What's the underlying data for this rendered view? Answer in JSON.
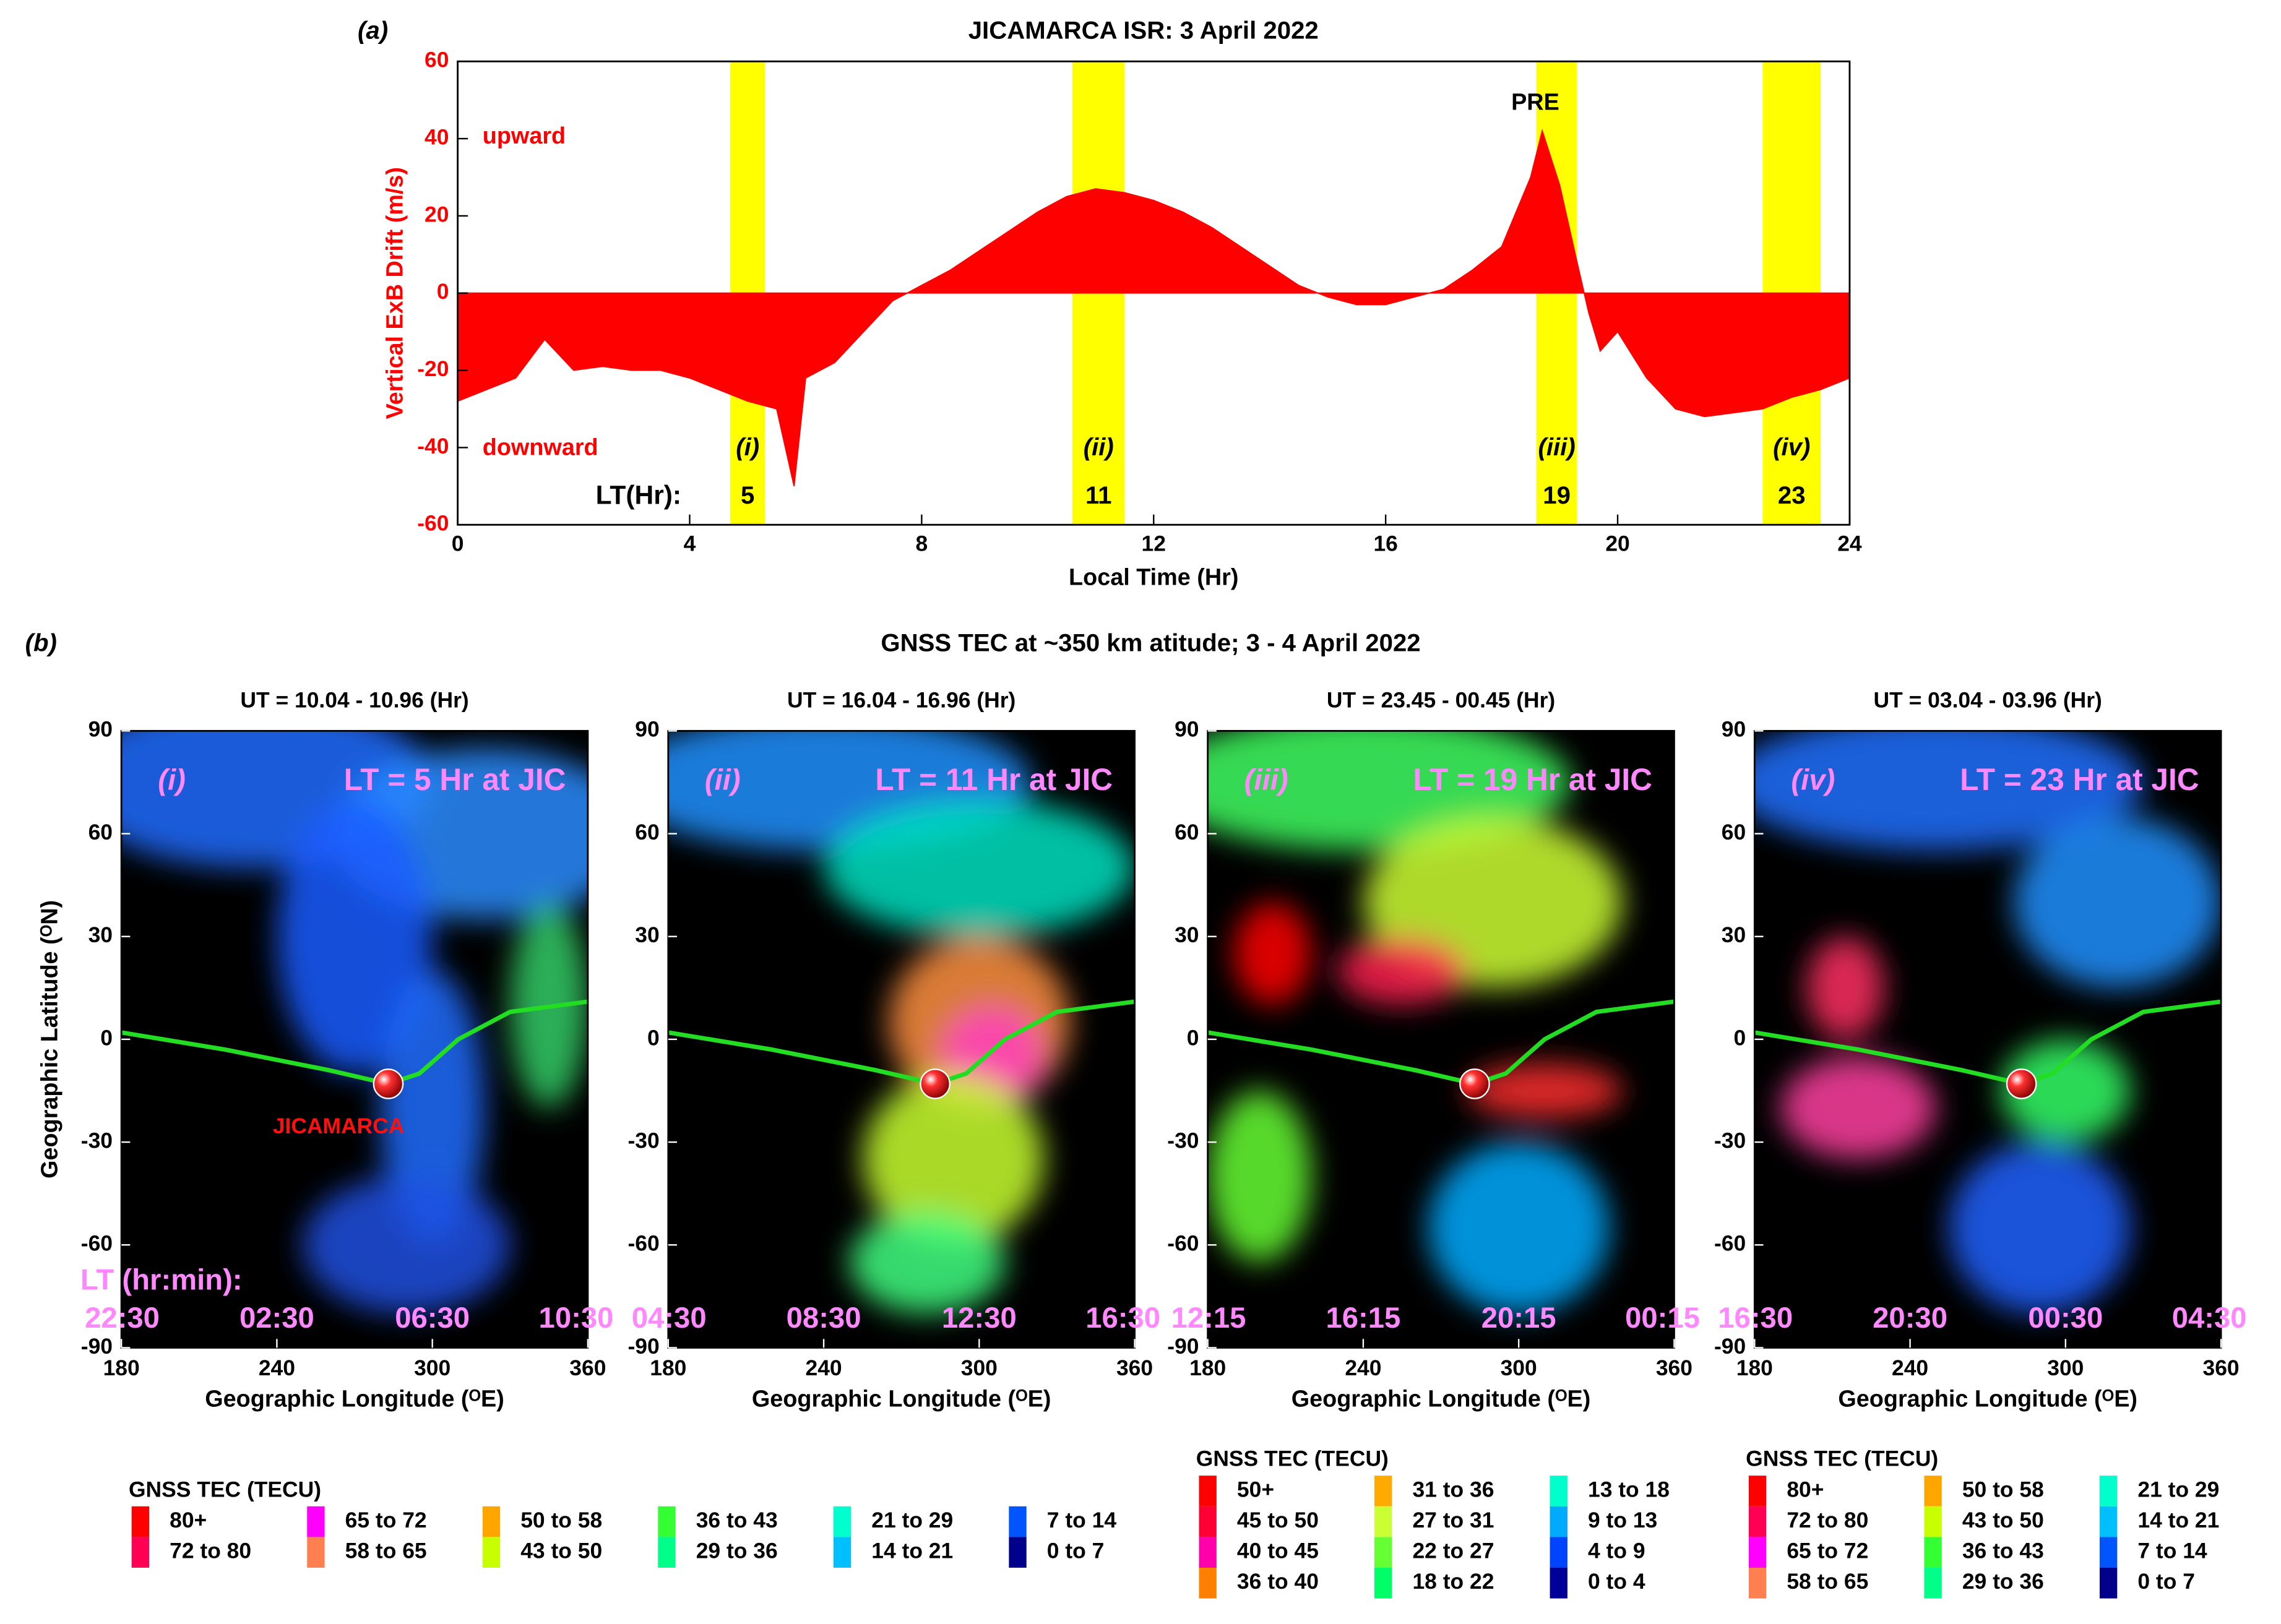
{
  "chart_data": [
    {
      "type": "area",
      "panel": "(a)",
      "title": "JICAMARCA ISR: 3 April 2022",
      "xlabel": "Local Time (Hr)",
      "ylabel": "Vertical ExB Drift (m/s)",
      "xlim": [
        0,
        24
      ],
      "xticks": [
        0,
        4,
        8,
        12,
        16,
        20,
        24
      ],
      "ylim": [
        -60,
        60
      ],
      "yticks": [
        -60,
        -40,
        -20,
        0,
        20,
        40,
        60
      ],
      "annotations": {
        "upward": "upward",
        "downward": "downward",
        "pre": "PRE",
        "lt": "LT(Hr):"
      },
      "bands": [
        {
          "start": 4.7,
          "end": 5.3,
          "label": "(i)",
          "lt": 5
        },
        {
          "start": 10.6,
          "end": 11.5,
          "label": "(ii)",
          "lt": 11
        },
        {
          "start": 18.6,
          "end": 19.3,
          "label": "(iii)",
          "lt": 19
        },
        {
          "start": 22.5,
          "end": 23.5,
          "label": "(iv)",
          "lt": 23
        }
      ],
      "band_color": "#ffff00",
      "x": [
        0,
        0.5,
        1,
        1.5,
        2,
        2.5,
        3,
        3.5,
        4,
        4.5,
        5,
        5.5,
        5.8,
        6,
        6.5,
        7,
        7.5,
        8,
        8.5,
        9,
        9.5,
        10,
        10.5,
        11,
        11.5,
        12,
        12.5,
        13,
        13.5,
        14,
        14.5,
        15,
        15.5,
        16,
        16.5,
        17,
        17.5,
        18,
        18.5,
        18.7,
        19,
        19.3,
        19.5,
        19.7,
        20,
        20.5,
        21,
        21.5,
        22,
        22.5,
        23,
        23.5,
        24
      ],
      "series": [
        {
          "name": "Vertical ExB Drift",
          "color": "#ff0000",
          "values": [
            -28,
            -25,
            -22,
            -12,
            -20,
            -19,
            -20,
            -20,
            -22,
            -25,
            -28,
            -30,
            -50,
            -22,
            -18,
            -10,
            -2,
            2,
            6,
            11,
            16,
            21,
            25,
            27,
            26,
            24,
            21,
            17,
            12,
            7,
            2,
            -1,
            -3,
            -3,
            -1,
            1,
            6,
            12,
            30,
            42,
            28,
            8,
            -5,
            -15,
            -10,
            -22,
            -30,
            -32,
            -31,
            -30,
            -27,
            -25,
            -22
          ]
        }
      ]
    },
    {
      "type": "map",
      "title": "UT = 10.04 - 10.96 (Hr)",
      "panel": "(i)",
      "annotation": "LT = 5 Hr at JIC",
      "site": "JICAMARCA",
      "ylabel": "Geographic Latitude (ᴼN)",
      "xlabel": "Geographic Longitude (ᴼE)",
      "xlim": [
        180,
        360
      ],
      "xticks": [
        180,
        240,
        300,
        360
      ],
      "ylim": [
        -90,
        90
      ],
      "yticks": [
        -90,
        -60,
        -30,
        0,
        30,
        60,
        90
      ],
      "lt_title": "LT (hr:min):",
      "lt_ticks": [
        {
          "value": 180,
          "label": "22:30"
        },
        {
          "value": 240,
          "label": "02:30"
        },
        {
          "value": 300,
          "label": "06:30"
        },
        {
          "value": 360,
          "label": "10:30"
        }
      ]
    },
    {
      "type": "map",
      "title": "UT = 16.04 - 16.96 (Hr)",
      "panel": "(ii)",
      "annotation": "LT = 11 Hr at JIC",
      "xlabel": "Geographic Longitude (ᴼE)",
      "xlim": [
        180,
        360
      ],
      "xticks": [
        180,
        240,
        300,
        360
      ],
      "ylim": [
        -90,
        90
      ],
      "yticks": [
        -90,
        -60,
        -30,
        0,
        30,
        60,
        90
      ],
      "lt_ticks": [
        {
          "value": 180,
          "label": "04:30"
        },
        {
          "value": 240,
          "label": "08:30"
        },
        {
          "value": 300,
          "label": "12:30"
        },
        {
          "value": 360,
          "label": "16:30"
        }
      ]
    },
    {
      "type": "map",
      "title": "UT = 23.45 - 00.45 (Hr)",
      "panel": "(iii)",
      "annotation": "LT = 19 Hr at JIC",
      "xlabel": "Geographic Longitude (ᴼE)",
      "xlim": [
        180,
        360
      ],
      "xticks": [
        180,
        240,
        300,
        360
      ],
      "ylim": [
        -90,
        90
      ],
      "yticks": [
        -90,
        -60,
        -30,
        0,
        30,
        60,
        90
      ],
      "lt_ticks": [
        {
          "value": 180,
          "label": "12:15"
        },
        {
          "value": 240,
          "label": "16:15"
        },
        {
          "value": 300,
          "label": "20:15"
        },
        {
          "value": 360,
          "label": "00:15"
        }
      ]
    },
    {
      "type": "map",
      "title": "UT = 03.04 - 03.96 (Hr)",
      "panel": "(iv)",
      "annotation": "LT = 23 Hr at JIC",
      "xlabel": "Geographic Longitude (ᴼE)",
      "xlim": [
        180,
        360
      ],
      "xticks": [
        180,
        240,
        300,
        360
      ],
      "ylim": [
        -90,
        90
      ],
      "yticks": [
        -90,
        -60,
        -30,
        0,
        30,
        60,
        90
      ],
      "lt_ticks": [
        {
          "value": 180,
          "label": "16:30"
        },
        {
          "value": 240,
          "label": "20:30"
        },
        {
          "value": 300,
          "label": "00:30"
        },
        {
          "value": 360,
          "label": "04:30"
        }
      ]
    }
  ],
  "panel_b": {
    "label": "(b)",
    "title": "GNSS TEC at ~350 km atitude; 3 - 4 April 2022",
    "legends": [
      {
        "title": "GNSS TEC (TECU)",
        "entries": [
          {
            "name": "80+",
            "color": "#ff0000"
          },
          {
            "name": "72 to 80",
            "color": "#ff0055"
          },
          {
            "name": "65 to 72",
            "color": "#ff00ff"
          },
          {
            "name": "58 to 65",
            "color": "#ff7f50"
          },
          {
            "name": "50 to 58",
            "color": "#ffa500"
          },
          {
            "name": "43 to 50",
            "color": "#c8ff00"
          },
          {
            "name": "36 to 43",
            "color": "#33ff33"
          },
          {
            "name": "29 to 36",
            "color": "#00ff88"
          },
          {
            "name": "21 to 29",
            "color": "#00ffcc"
          },
          {
            "name": "14 to 21",
            "color": "#00bfff"
          },
          {
            "name": "7 to 14",
            "color": "#0055ff"
          },
          {
            "name": "0 to 7",
            "color": "#00008b"
          }
        ]
      },
      {
        "title": "GNSS TEC (TECU)",
        "entries": [
          {
            "name": "50+",
            "color": "#ff0000"
          },
          {
            "name": "45 to 50",
            "color": "#ff0033"
          },
          {
            "name": "40 to 45",
            "color": "#ff00aa"
          },
          {
            "name": "36 to 40",
            "color": "#ff8000"
          },
          {
            "name": "31 to 36",
            "color": "#ffaa00"
          },
          {
            "name": "27 to 31",
            "color": "#ccff33"
          },
          {
            "name": "22 to 27",
            "color": "#66ff33"
          },
          {
            "name": "18 to 22",
            "color": "#00ff66"
          },
          {
            "name": "13 to 18",
            "color": "#00ffcc"
          },
          {
            "name": "9 to 13",
            "color": "#00aaff"
          },
          {
            "name": "4 to 9",
            "color": "#0044ff"
          },
          {
            "name": "0 to 4",
            "color": "#000099"
          }
        ]
      },
      {
        "title": "GNSS TEC (TECU)",
        "entries": [
          {
            "name": "80+",
            "color": "#ff0000"
          },
          {
            "name": "72 to 80",
            "color": "#ff0055"
          },
          {
            "name": "65 to 72",
            "color": "#ff00ff"
          },
          {
            "name": "58 to 65",
            "color": "#ff7f50"
          },
          {
            "name": "50 to 58",
            "color": "#ffa500"
          },
          {
            "name": "43 to 50",
            "color": "#c8ff00"
          },
          {
            "name": "36 to 43",
            "color": "#33ff33"
          },
          {
            "name": "29 to 36",
            "color": "#00ff88"
          },
          {
            "name": "21 to 29",
            "color": "#00ffcc"
          },
          {
            "name": "14 to 21",
            "color": "#00bfff"
          },
          {
            "name": "7 to 14",
            "color": "#0055ff"
          },
          {
            "name": "0 to 7",
            "color": "#00008b"
          }
        ]
      }
    ]
  }
}
